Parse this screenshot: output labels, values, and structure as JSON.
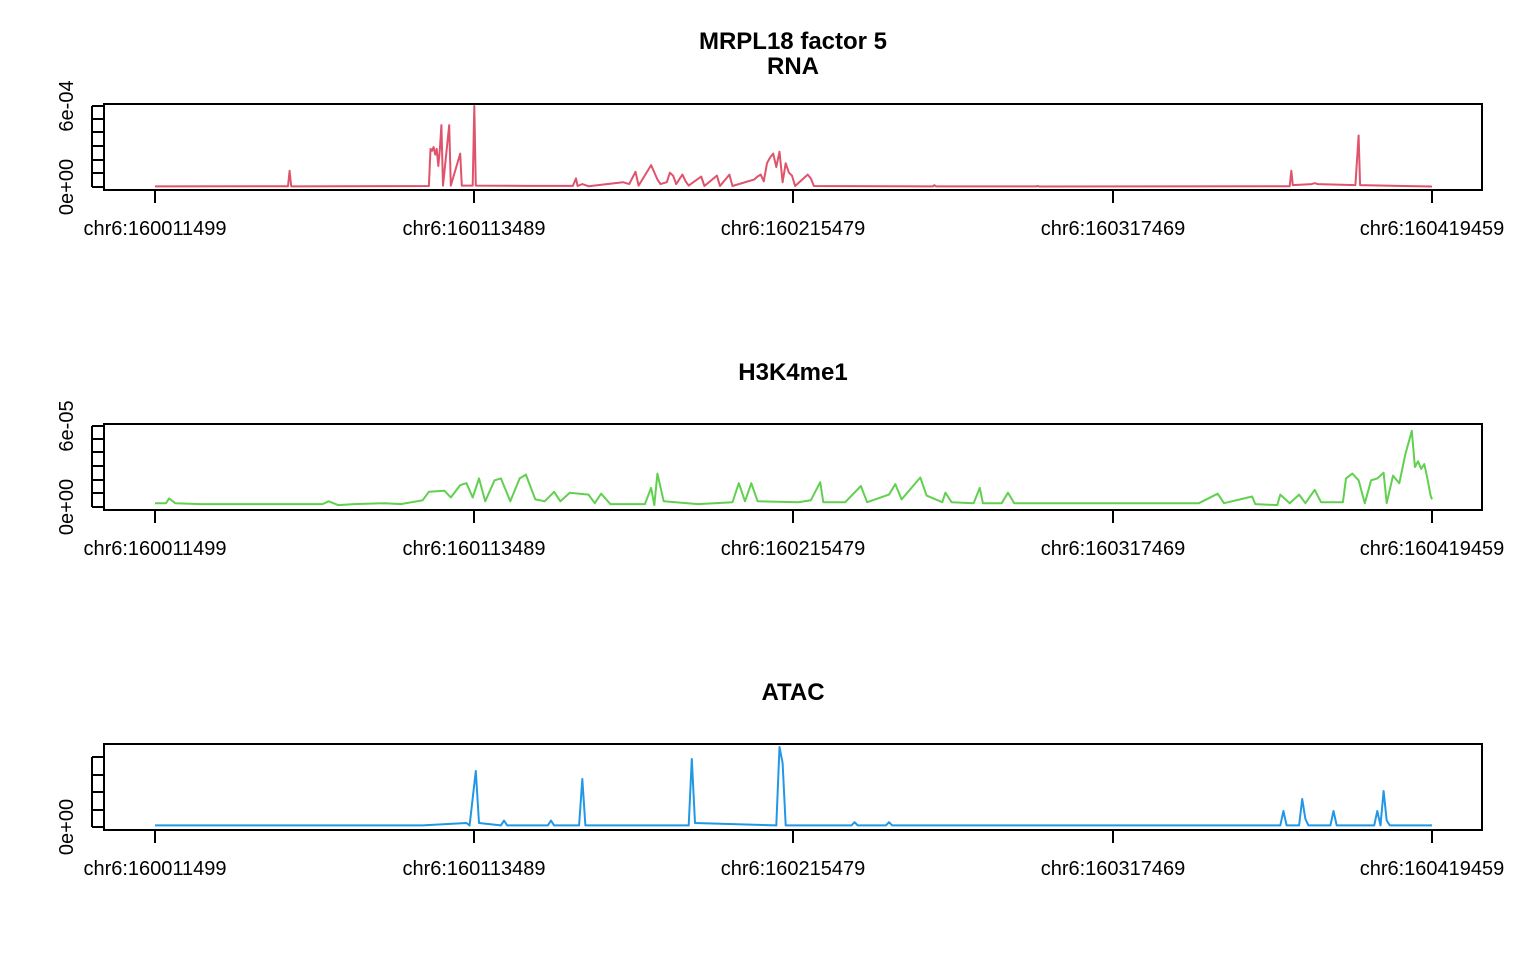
{
  "chart_data": {
    "title": "MRPL18 factor 5",
    "type": "line",
    "x_ticks": [
      "chr6:160011499",
      "chr6:160113489",
      "chr6:160215479",
      "chr6:160317469",
      "chr6:160419459"
    ],
    "x_range": [
      160011499,
      160419459
    ],
    "grid": false,
    "panels": [
      {
        "title": "RNA",
        "color": "#DF536B",
        "y_ticks_labeled": [
          "0e+00",
          "6e-04"
        ],
        "ylim": [
          0,
          0.00085
        ],
        "points": [
          [
            160011499,
            6e-06
          ],
          [
            160054000,
            8e-06
          ],
          [
            160054500,
            0.00017
          ],
          [
            160055000,
            6e-06
          ],
          [
            160099000,
            1e-05
          ],
          [
            160099500,
            0.0004
          ],
          [
            160100000,
            0.00038
          ],
          [
            160100500,
            0.00042
          ],
          [
            160101000,
            0.00034
          ],
          [
            160101500,
            0.0004
          ],
          [
            160102000,
            0.00022
          ],
          [
            160102500,
            0.0004
          ],
          [
            160103000,
            0.00065
          ],
          [
            160103500,
            1.5e-05
          ],
          [
            160105500,
            0.00065
          ],
          [
            160106000,
            1.5e-05
          ],
          [
            160109000,
            0.00035
          ],
          [
            160109500,
            1.5e-05
          ],
          [
            160113000,
            1.5e-05
          ],
          [
            160113489,
            0.00085
          ],
          [
            160114000,
            1.5e-05
          ],
          [
            160130000,
            1.2e-05
          ],
          [
            160145000,
            1.2e-05
          ],
          [
            160146000,
            9e-05
          ],
          [
            160146500,
            1e-05
          ],
          [
            160148000,
            3e-05
          ],
          [
            160150000,
            8e-06
          ],
          [
            160161000,
            5e-05
          ],
          [
            160163000,
            3e-05
          ],
          [
            160165000,
            0.00016
          ],
          [
            160166000,
            1.5e-05
          ],
          [
            160170000,
            0.00023
          ],
          [
            160172000,
            8e-05
          ],
          [
            160173000,
            3e-05
          ],
          [
            160175000,
            5e-05
          ],
          [
            160176000,
            0.00015
          ],
          [
            160177000,
            0.00012
          ],
          [
            160178000,
            3e-05
          ],
          [
            160180000,
            0.00013
          ],
          [
            160181000,
            6e-05
          ],
          [
            160182000,
            1.5e-05
          ],
          [
            160186000,
            0.00011
          ],
          [
            160187000,
            1e-05
          ],
          [
            160191000,
            0.00012
          ],
          [
            160192000,
            1e-05
          ],
          [
            160195000,
            0.00013
          ],
          [
            160196000,
            1e-05
          ],
          [
            160203000,
            8e-05
          ],
          [
            160204000,
            0.00011
          ],
          [
            160205000,
            0.00013
          ],
          [
            160206000,
            6e-05
          ],
          [
            160207000,
            0.00025
          ],
          [
            160208000,
            0.00031
          ],
          [
            160209000,
            0.00035
          ],
          [
            160210000,
            0.00021
          ],
          [
            160211000,
            0.00037
          ],
          [
            160212000,
            5e-05
          ],
          [
            160213000,
            0.00025
          ],
          [
            160214000,
            0.00015
          ],
          [
            160215000,
            0.00012
          ],
          [
            160216000,
            1e-05
          ],
          [
            160220000,
            0.00013
          ],
          [
            160221000,
            9e-05
          ],
          [
            160222000,
            1e-05
          ],
          [
            160260000,
            6e-06
          ],
          [
            160260500,
            2e-05
          ],
          [
            160261000,
            6e-06
          ],
          [
            160293000,
            6e-06
          ],
          [
            160293500,
            1e-05
          ],
          [
            160294000,
            5e-06
          ],
          [
            160374000,
            8e-06
          ],
          [
            160374500,
            0.00017
          ],
          [
            160375000,
            2e-05
          ],
          [
            160381000,
            3e-05
          ],
          [
            160382000,
            4e-05
          ],
          [
            160383000,
            3e-05
          ],
          [
            160395000,
            2e-05
          ],
          [
            160396000,
            0.00054
          ],
          [
            160396500,
            2e-05
          ],
          [
            160419459,
            5e-06
          ]
        ]
      },
      {
        "title": "H3K4me1",
        "color": "#61D04F",
        "y_ticks_labeled": [
          "0e+00",
          "6e-05"
        ],
        "ylim": [
          0,
          8.5e-05
        ],
        "points": [
          [
            160011499,
            4e-06
          ],
          [
            160015000,
            4e-06
          ],
          [
            160016000,
            9e-06
          ],
          [
            160018000,
            4e-06
          ],
          [
            160026000,
            3e-06
          ],
          [
            160055000,
            3e-06
          ],
          [
            160065000,
            3e-06
          ],
          [
            160067000,
            6e-06
          ],
          [
            160070000,
            2e-06
          ],
          [
            160075000,
            3e-06
          ],
          [
            160085000,
            4e-06
          ],
          [
            160090000,
            3e-06
          ],
          [
            160097000,
            7e-06
          ],
          [
            160099000,
            1.6e-05
          ],
          [
            160104000,
            1.7e-05
          ],
          [
            160106000,
            1e-05
          ],
          [
            160109000,
            2.3e-05
          ],
          [
            160111000,
            2.5e-05
          ],
          [
            160113000,
            1e-05
          ],
          [
            160115000,
            3e-05
          ],
          [
            160117000,
            6e-06
          ],
          [
            160120000,
            2.8e-05
          ],
          [
            160122000,
            3e-05
          ],
          [
            160125000,
            6e-06
          ],
          [
            160128000,
            3e-05
          ],
          [
            160130000,
            3.4e-05
          ],
          [
            160133000,
            8e-06
          ],
          [
            160136000,
            6e-06
          ],
          [
            160139000,
            1.6e-05
          ],
          [
            160141000,
            6e-06
          ],
          [
            160144000,
            1.5e-05
          ],
          [
            160150000,
            1.3e-05
          ],
          [
            160152000,
            4e-06
          ],
          [
            160154000,
            1.4e-05
          ],
          [
            160157000,
            3e-06
          ],
          [
            160168000,
            3e-06
          ],
          [
            160170000,
            2e-05
          ],
          [
            160171000,
            2e-06
          ],
          [
            160172000,
            3.5e-05
          ],
          [
            160174000,
            6e-06
          ],
          [
            160185000,
            3e-06
          ],
          [
            160196000,
            5e-06
          ],
          [
            160198000,
            2.5e-05
          ],
          [
            160200000,
            6e-06
          ],
          [
            160202000,
            2.5e-05
          ],
          [
            160204000,
            6e-06
          ],
          [
            160217000,
            5e-06
          ],
          [
            160221000,
            7e-06
          ],
          [
            160224000,
            2.6e-05
          ],
          [
            160225000,
            5e-06
          ],
          [
            160232000,
            5e-06
          ],
          [
            160237000,
            2.2e-05
          ],
          [
            160239000,
            5e-06
          ],
          [
            160246000,
            1.3e-05
          ],
          [
            160248000,
            2.4e-05
          ],
          [
            160250000,
            8e-06
          ],
          [
            160256000,
            3.1e-05
          ],
          [
            160258000,
            1.2e-05
          ],
          [
            160263000,
            5e-06
          ],
          [
            160264000,
            1.5e-05
          ],
          [
            160266000,
            5e-06
          ],
          [
            160273000,
            4e-06
          ],
          [
            160275000,
            2e-05
          ],
          [
            160276000,
            4e-06
          ],
          [
            160282000,
            4e-06
          ],
          [
            160284000,
            1.5e-05
          ],
          [
            160286000,
            4e-06
          ],
          [
            160291000,
            4e-06
          ],
          [
            160300000,
            4e-06
          ],
          [
            160315000,
            4e-06
          ],
          [
            160330000,
            4e-06
          ],
          [
            160345000,
            4e-06
          ],
          [
            160351000,
            1.4e-05
          ],
          [
            160353000,
            4e-06
          ],
          [
            160362000,
            1.1e-05
          ],
          [
            160363000,
            3e-06
          ],
          [
            160370000,
            2e-06
          ],
          [
            160371000,
            1.3e-05
          ],
          [
            160374000,
            4e-06
          ],
          [
            160377000,
            1.3e-05
          ],
          [
            160379000,
            4e-06
          ],
          [
            160382000,
            1.8e-05
          ],
          [
            160384000,
            5e-06
          ],
          [
            160391000,
            5e-06
          ],
          [
            160392000,
            3e-05
          ],
          [
            160394000,
            3.5e-05
          ],
          [
            160396000,
            2.8e-05
          ],
          [
            160398000,
            4e-06
          ],
          [
            160400000,
            2.8e-05
          ],
          [
            160402000,
            3e-05
          ],
          [
            160404000,
            3.6e-05
          ],
          [
            160405000,
            4e-06
          ],
          [
            160407000,
            3.3e-05
          ],
          [
            160409000,
            2.5e-05
          ],
          [
            160411000,
            5.6e-05
          ],
          [
            160412000,
            6.8e-05
          ],
          [
            160413000,
            8e-05
          ],
          [
            160414000,
            4.2e-05
          ],
          [
            160415000,
            4.8e-05
          ],
          [
            160416000,
            4e-05
          ],
          [
            160417000,
            4.5e-05
          ],
          [
            160418000,
            3e-05
          ],
          [
            160419000,
            1.2e-05
          ],
          [
            160419459,
            8e-06
          ]
        ]
      },
      {
        "title": "ATAC",
        "color": "#2297E6",
        "y_ticks_labeled": [
          "0e+00"
        ],
        "y_tick_count": 5,
        "ylim": [
          0,
          1.0
        ],
        "points": [
          [
            160011499,
            0.02
          ],
          [
            160097000,
            0.02
          ],
          [
            160111000,
            0.05
          ],
          [
            160112000,
            0.02
          ],
          [
            160114000,
            0.7
          ],
          [
            160115000,
            0.05
          ],
          [
            160122000,
            0.02
          ],
          [
            160123000,
            0.08
          ],
          [
            160124000,
            0.02
          ],
          [
            160137000,
            0.02
          ],
          [
            160138000,
            0.08
          ],
          [
            160139000,
            0.02
          ],
          [
            160147000,
            0.02
          ],
          [
            160148000,
            0.6
          ],
          [
            160149000,
            0.02
          ],
          [
            160182000,
            0.02
          ],
          [
            160183000,
            0.85
          ],
          [
            160184000,
            0.05
          ],
          [
            160210000,
            0.02
          ],
          [
            160211000,
            1.0
          ],
          [
            160212000,
            0.8
          ],
          [
            160213000,
            0.02
          ],
          [
            160234000,
            0.02
          ],
          [
            160235000,
            0.06
          ],
          [
            160236000,
            0.02
          ],
          [
            160245000,
            0.02
          ],
          [
            160246000,
            0.06
          ],
          [
            160247000,
            0.02
          ],
          [
            160371000,
            0.02
          ],
          [
            160372000,
            0.2
          ],
          [
            160373000,
            0.02
          ],
          [
            160377000,
            0.02
          ],
          [
            160378000,
            0.35
          ],
          [
            160379000,
            0.1
          ],
          [
            160380000,
            0.02
          ],
          [
            160387000,
            0.02
          ],
          [
            160388000,
            0.2
          ],
          [
            160389000,
            0.02
          ],
          [
            160401000,
            0.02
          ],
          [
            160402000,
            0.2
          ],
          [
            160403000,
            0.02
          ],
          [
            160404000,
            0.45
          ],
          [
            160405000,
            0.08
          ],
          [
            160406000,
            0.02
          ],
          [
            160419459,
            0.02
          ]
        ]
      }
    ]
  }
}
